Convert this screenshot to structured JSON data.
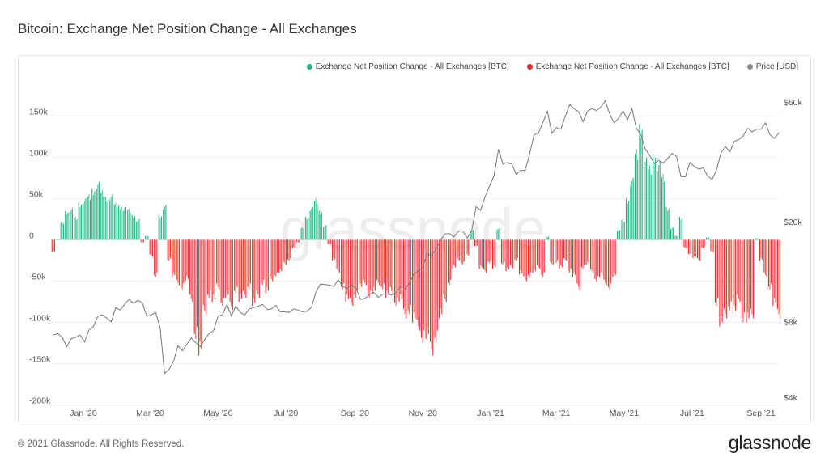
{
  "title": "Bitcoin: Exchange Net Position Change - All Exchanges",
  "footer": "© 2021 Glassnode. All Rights Reserved.",
  "logo": "glassnode",
  "watermark": "glassnode",
  "colors": {
    "positive": "#1fb57f",
    "negative": "#ee2a2a",
    "price": "#777777",
    "grid": "#efefef"
  },
  "chart_data": {
    "type": "bar",
    "title": "Bitcoin: Exchange Net Position Change - All Exchanges",
    "legend": [
      {
        "label": "Exchange Net Position Change - All Exchanges [BTC]",
        "color": "#1fb57f"
      },
      {
        "label": "Exchange Net Position Change - All Exchanges [BTC]",
        "color": "#ee2a2a"
      },
      {
        "label": "Price [USD]",
        "color": "#888888"
      }
    ],
    "legend_position": "top-right",
    "x_ticks": [
      "Jan '20",
      "Mar '20",
      "May '20",
      "Jul '20",
      "Sep '20",
      "Nov '20",
      "Jan '21",
      "Mar '21",
      "May '21",
      "Jul '21",
      "Sep '21"
    ],
    "x_tick_dates": [
      "2020-01-01",
      "2020-03-01",
      "2020-05-01",
      "2020-07-01",
      "2020-09-01",
      "2020-11-01",
      "2021-01-01",
      "2021-03-01",
      "2021-05-01",
      "2021-07-01",
      "2021-09-01"
    ],
    "y_left": {
      "label": "BTC",
      "ticks": [
        "150k",
        "100k",
        "50k",
        "0",
        "-50k",
        "-100k",
        "-150k",
        "-200k"
      ],
      "tick_values": [
        150000,
        100000,
        50000,
        0,
        -50000,
        -100000,
        -150000,
        -200000
      ],
      "range": [
        -200000,
        150000
      ]
    },
    "y_right": {
      "label": "Price [USD]",
      "scale": "log",
      "ticks": [
        "$60k",
        "$20k",
        "$8k",
        "$4k"
      ],
      "tick_values": [
        60000,
        20000,
        8000,
        4000
      ],
      "range": [
        4000,
        60000
      ]
    },
    "grid": true,
    "start_date": "2019-12-05",
    "step_days": 4,
    "net_position_change_k_btc": [
      -15,
      0,
      22,
      35,
      38,
      28,
      45,
      50,
      55,
      62,
      70,
      60,
      52,
      55,
      45,
      42,
      40,
      38,
      30,
      25,
      -3,
      5,
      -20,
      -45,
      30,
      42,
      -25,
      -45,
      -55,
      -60,
      -50,
      -75,
      -120,
      -140,
      -90,
      -70,
      -75,
      -60,
      -80,
      -70,
      -85,
      -65,
      -75,
      -70,
      -60,
      -80,
      -70,
      -55,
      -65,
      -50,
      -45,
      -40,
      -30,
      -25,
      -10,
      -3,
      15,
      28,
      40,
      50,
      35,
      18,
      -5,
      -25,
      -40,
      -60,
      -75,
      -80,
      -70,
      -60,
      -55,
      -70,
      -65,
      -55,
      -60,
      -70,
      -65,
      -80,
      -75,
      -95,
      -90,
      -100,
      -110,
      -125,
      -120,
      -140,
      -125,
      -95,
      -75,
      -55,
      -35,
      -25,
      -30,
      -20,
      12,
      -8,
      -35,
      -40,
      -28,
      -35,
      14,
      -30,
      -38,
      -35,
      -25,
      -42,
      -50,
      -45,
      -40,
      -35,
      -45,
      4,
      -30,
      -28,
      -35,
      -25,
      -40,
      -45,
      -60,
      -35,
      -30,
      -40,
      -50,
      -45,
      -55,
      -60,
      -45,
      12,
      25,
      50,
      75,
      110,
      140,
      100,
      90,
      105,
      95,
      80,
      40,
      15,
      5,
      28,
      -10,
      -18,
      -22,
      -25,
      -10,
      3,
      -15,
      -80,
      -105,
      -95,
      -85,
      -90,
      -75,
      -100,
      -100,
      -95,
      2,
      -25,
      -45,
      -60,
      -80,
      -95
    ],
    "price_usd": [
      7400,
      7500,
      7250,
      6650,
      7150,
      7250,
      7400,
      6950,
      7750,
      8000,
      8800,
      8900,
      8650,
      8350,
      9500,
      9300,
      9800,
      10250,
      9900,
      10150,
      9950,
      8800,
      8900,
      9100,
      7900,
      5200,
      5400,
      5800,
      6700,
      6400,
      6800,
      7200,
      6900,
      6650,
      7100,
      7500,
      7700,
      8800,
      8900,
      9800,
      8800,
      9650,
      9100,
      8900,
      9400,
      9500,
      9650,
      9800,
      9350,
      9400,
      9700,
      9150,
      9150,
      9100,
      9400,
      9300,
      9150,
      9200,
      9550,
      11000,
      11800,
      11750,
      11700,
      11550,
      12300,
      11550,
      11350,
      11700,
      11400,
      10250,
      10350,
      10700,
      10950,
      10450,
      10750,
      10780,
      10650,
      10900,
      11550,
      11300,
      11900,
      12950,
      13300,
      13750,
      15600,
      15350,
      16300,
      17700,
      18700,
      18750,
      18200,
      19200,
      19200,
      18000,
      19300,
      24000,
      23250,
      26300,
      29000,
      31900,
      40600,
      35500,
      36000,
      35500,
      32300,
      33500,
      33500,
      38900,
      46400,
      47200,
      52100,
      57500,
      47000,
      49600,
      48800,
      54900,
      61200,
      58900,
      57400,
      52300,
      57600,
      59000,
      58000,
      59800,
      63500,
      56200,
      51700,
      54000,
      57800,
      53200,
      58800,
      49200,
      46400,
      40600,
      38400,
      35700,
      36700,
      35800,
      37300,
      39100,
      38100,
      31600,
      31600,
      36000,
      34700,
      33900,
      34300,
      31800,
      30800,
      33600,
      39400,
      41600,
      39700,
      43800,
      44400,
      46000,
      49300,
      47700,
      48900,
      48800,
      51800,
      46400,
      44900,
      47300
    ]
  }
}
